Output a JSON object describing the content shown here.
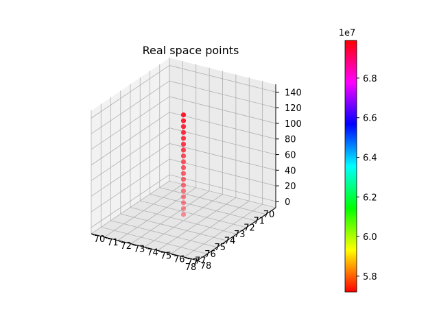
{
  "chart_data": {
    "type": "scatter3d",
    "title": "Real space points",
    "xlabel": "",
    "ylabel": "",
    "zlabel": "",
    "x_ticks": [
      "70",
      "71",
      "72",
      "73",
      "74",
      "75",
      "76",
      "77",
      "78"
    ],
    "y_ticks": [
      "70",
      "71",
      "72",
      "73",
      "74",
      "75",
      "76",
      "77",
      "78"
    ],
    "z_ticks": [
      "0",
      "20",
      "40",
      "60",
      "80",
      "100",
      "120",
      "140"
    ],
    "xlim": [
      70,
      78
    ],
    "ylim": [
      70,
      78
    ],
    "zlim": [
      -8,
      150
    ],
    "grid": true,
    "points": {
      "x": 74,
      "y": 74,
      "z": [
        0,
        7.5,
        15,
        22.5,
        30,
        37.5,
        45,
        52.5,
        60,
        67.5,
        75,
        82.5,
        90,
        97.5,
        105,
        112.5,
        120,
        127.5
      ],
      "color": "#ff1a2e"
    },
    "colorbar": {
      "label": "",
      "exponent": "1e7",
      "range": [
        5.72,
        6.99
      ],
      "ticks": [
        "5.8",
        "6.0",
        "6.2",
        "6.4",
        "6.6",
        "6.8"
      ],
      "tick_values": [
        5.8,
        6.0,
        6.2,
        6.4,
        6.6,
        6.8
      ],
      "colormap": [
        "#ff0000",
        "#ffff00",
        "#00ff00",
        "#00ffff",
        "#0000ff",
        "#ff00ff",
        "#ff0000"
      ]
    }
  }
}
